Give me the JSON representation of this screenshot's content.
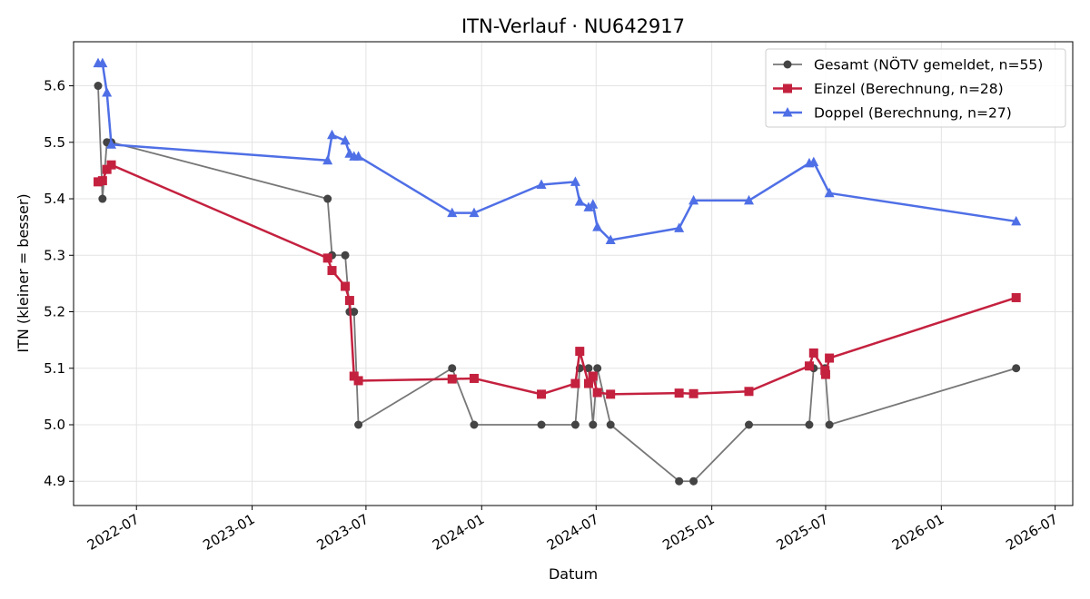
{
  "chart_data": {
    "type": "line",
    "title": "ITN-Verlauf · NU642917",
    "xlabel": "Datum",
    "ylabel": "ITN  (kleiner = besser)",
    "x_axis_type": "date",
    "xlim": [
      "2022-03-23",
      "2026-07-29"
    ],
    "ylim": [
      4.857,
      5.678
    ],
    "grid": true,
    "legend_position": "top-right",
    "x_ticks": [
      "2022-07-01",
      "2023-01-01",
      "2023-07-01",
      "2024-01-01",
      "2024-07-01",
      "2025-01-01",
      "2025-07-01",
      "2026-01-01",
      "2026-07-01"
    ],
    "x_tick_labels": [
      "2022-07",
      "2023-01",
      "2023-07",
      "2024-01",
      "2024-07",
      "2025-01",
      "2025-07",
      "2026-01",
      "2026-07"
    ],
    "y_ticks": [
      4.9,
      5.0,
      5.1,
      5.2,
      5.3,
      5.4,
      5.5,
      5.6
    ],
    "y_tick_labels": [
      "4.9",
      "5.0",
      "5.1",
      "5.2",
      "5.3",
      "5.4",
      "5.5",
      "5.6"
    ],
    "series": [
      {
        "name": "Gesamt (NÖTV gemeldet, n=55)",
        "color": "#777777",
        "marker_color": "#444444",
        "marker": "circle",
        "x": [
          "2022-05-01",
          "2022-05-08",
          "2022-05-15",
          "2022-05-22",
          "2023-05-01",
          "2023-05-08",
          "2023-05-29",
          "2023-06-05",
          "2023-06-12",
          "2023-06-19",
          "2023-11-15",
          "2023-12-20",
          "2024-04-05",
          "2024-05-29",
          "2024-06-05",
          "2024-06-19",
          "2024-06-26",
          "2024-07-03",
          "2024-07-24",
          "2024-11-10",
          "2024-12-03",
          "2025-03-01",
          "2025-06-05",
          "2025-06-12",
          "2025-06-30",
          "2025-07-07",
          "2026-04-30"
        ],
        "y": [
          5.6,
          5.4,
          5.5,
          5.5,
          5.4,
          5.3,
          5.3,
          5.2,
          5.2,
          5.0,
          5.1,
          5.0,
          5.0,
          5.0,
          5.1,
          5.1,
          5.0,
          5.1,
          5.0,
          4.9,
          4.9,
          5.0,
          5.0,
          5.1,
          5.1,
          5.0,
          5.1
        ]
      },
      {
        "name": "Einzel (Berechnung, n=28)",
        "color": "#c4213f",
        "marker": "square",
        "x": [
          "2022-05-01",
          "2022-05-08",
          "2022-05-15",
          "2022-05-22",
          "2023-05-01",
          "2023-05-08",
          "2023-05-29",
          "2023-06-05",
          "2023-06-12",
          "2023-06-19",
          "2023-11-15",
          "2023-12-20",
          "2024-04-05",
          "2024-05-29",
          "2024-06-05",
          "2024-06-19",
          "2024-06-26",
          "2024-07-03",
          "2024-07-24",
          "2024-11-10",
          "2024-12-03",
          "2025-03-01",
          "2025-06-05",
          "2025-06-12",
          "2025-06-30",
          "2025-07-01",
          "2025-07-07",
          "2026-04-30"
        ],
        "y": [
          5.43,
          5.432,
          5.452,
          5.46,
          5.295,
          5.273,
          5.245,
          5.22,
          5.086,
          5.078,
          5.081,
          5.082,
          5.054,
          5.073,
          5.13,
          5.073,
          5.086,
          5.057,
          5.054,
          5.056,
          5.055,
          5.059,
          5.104,
          5.127,
          5.096,
          5.089,
          5.118,
          5.225
        ]
      },
      {
        "name": "Doppel (Berechnung, n=27)",
        "color": "#4f6fe6",
        "marker": "triangle",
        "x": [
          "2022-05-01",
          "2022-05-08",
          "2022-05-15",
          "2022-05-22",
          "2023-05-01",
          "2023-05-08",
          "2023-05-29",
          "2023-06-05",
          "2023-06-12",
          "2023-06-19",
          "2023-11-15",
          "2023-12-20",
          "2024-04-05",
          "2024-05-29",
          "2024-06-05",
          "2024-06-19",
          "2024-06-26",
          "2024-07-03",
          "2024-07-24",
          "2024-11-10",
          "2024-12-03",
          "2025-03-01",
          "2025-06-05",
          "2025-06-12",
          "2025-07-07",
          "2026-04-30"
        ],
        "y": [
          5.64,
          5.64,
          5.588,
          5.496,
          5.468,
          5.513,
          5.503,
          5.48,
          5.475,
          5.475,
          5.375,
          5.375,
          5.425,
          5.43,
          5.395,
          5.385,
          5.39,
          5.35,
          5.327,
          5.348,
          5.397,
          5.397,
          5.463,
          5.465,
          5.41,
          5.36
        ]
      }
    ]
  }
}
